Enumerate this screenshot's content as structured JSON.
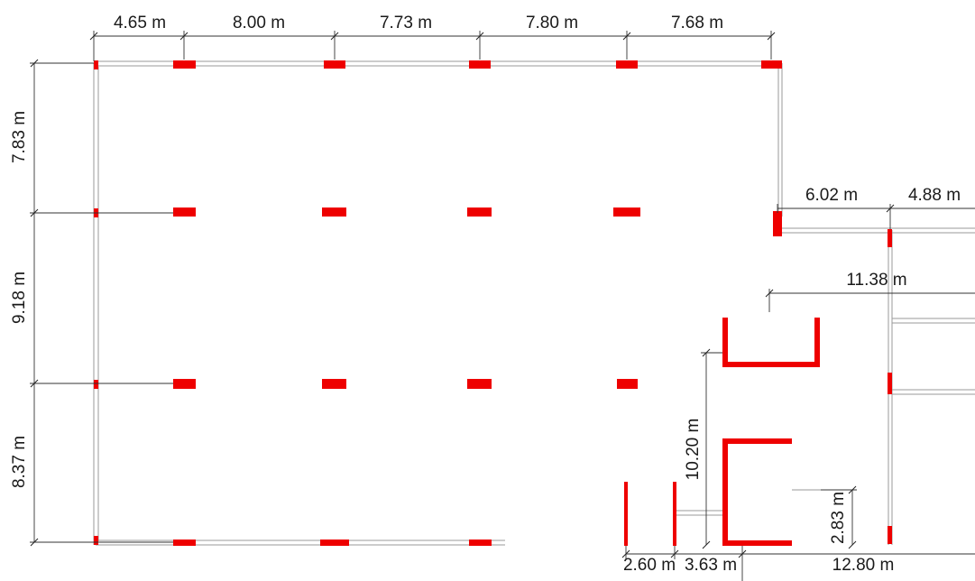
{
  "drawing": {
    "wall_color": "#9a9a9a",
    "column_color": "#ee0000",
    "dimension_line_color": "#333333"
  },
  "dimensions": {
    "top_1": "4.65 m",
    "top_2": "8.00 m",
    "top_3": "7.73 m",
    "top_4": "7.80 m",
    "top_5": "7.68 m",
    "left_1": "7.83 m",
    "left_2": "9.18 m",
    "left_3": "8.37 m",
    "right_a": "6.02 m",
    "right_b": "4.88 m",
    "mid_span": "11.38 m",
    "vertical_span": "10.20 m",
    "small_vertical": "2.83 m",
    "bottom_1": "2.60 m",
    "bottom_2": "3.63 m",
    "bottom_3": "12.80 m"
  }
}
